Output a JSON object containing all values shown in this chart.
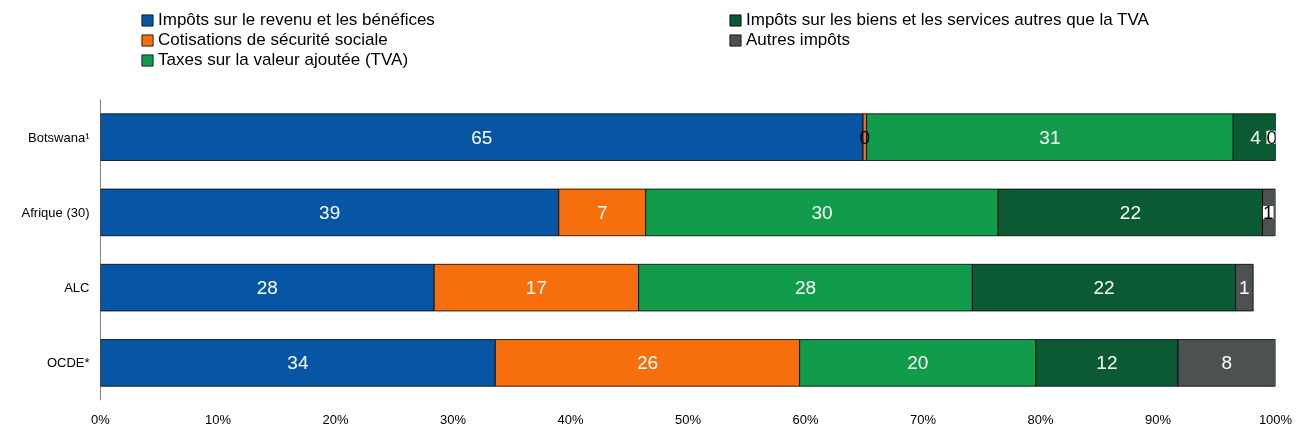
{
  "chart_data": {
    "type": "bar",
    "orientation": "horizontal",
    "stacked": true,
    "categories": [
      "Botswana¹",
      "Afrique (30)",
      "ALC",
      "OCDE*"
    ],
    "series": [
      {
        "name": "Impôts sur le revenu et les bénéfices",
        "color": "#0756a5",
        "values": [
          64.9,
          39.0,
          28.4,
          33.6
        ],
        "value_labels": [
          "65",
          "39",
          "28",
          "34"
        ]
      },
      {
        "name": "Cotisations de sécurité sociale",
        "color": "#f76f0c",
        "values": [
          0.3,
          7.4,
          17.4,
          25.9
        ],
        "value_labels": [
          "0",
          "7",
          "17",
          "26"
        ]
      },
      {
        "name": "Taxes sur la valeur ajoutée (TVA)",
        "color": "#119c4c",
        "values": [
          31.2,
          30.0,
          28.4,
          20.1
        ],
        "value_labels": [
          "31",
          "30",
          "28",
          "20"
        ]
      },
      {
        "name": "Impôts sur les biens et les services autres que la TVA",
        "color": "#0a5b33",
        "values": [
          3.8,
          22.5,
          22.4,
          12.1
        ],
        "value_labels": [
          "4",
          "22",
          "22",
          "12"
        ]
      },
      {
        "name": "Autres impôts",
        "color": "#4c5151",
        "values": [
          0.1,
          1.1,
          1.5,
          8.3
        ],
        "value_labels": [
          "0",
          "1",
          "1",
          "8"
        ]
      }
    ],
    "xlim": [
      0,
      100
    ],
    "xticks": [
      {
        "value": 0,
        "label": "0%"
      },
      {
        "value": 10,
        "label": "10%"
      },
      {
        "value": 20,
        "label": "20%"
      },
      {
        "value": 30,
        "label": "30%"
      },
      {
        "value": 40,
        "label": "40%"
      },
      {
        "value": 50,
        "label": "50%"
      },
      {
        "value": 60,
        "label": "60%"
      },
      {
        "value": 70,
        "label": "70%"
      },
      {
        "value": 80,
        "label": "80%"
      },
      {
        "value": 90,
        "label": "90%"
      },
      {
        "value": 100,
        "label": "100%"
      }
    ],
    "grid": false,
    "legend": "top"
  }
}
